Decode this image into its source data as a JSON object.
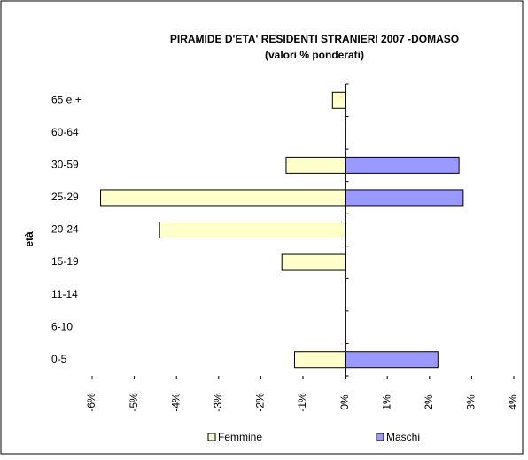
{
  "chart_data": {
    "type": "hbar",
    "title": "PIRAMIDE D'ETA' RESIDENTI STRANIERI 2007 -DOMASO",
    "subtitle": "(valori % ponderati)",
    "y_label": "età",
    "categories": [
      "0-5",
      "6-10",
      "11-14",
      "15-19",
      "20-24",
      "25-29",
      "30-59",
      "60-64",
      "65 e +"
    ],
    "series": [
      {
        "name": "Femmine",
        "color": "#ffffcc",
        "values": [
          -1.2,
          0,
          0,
          -1.5,
          -4.4,
          -5.8,
          -1.4,
          0,
          -0.3
        ]
      },
      {
        "name": "Maschi",
        "color": "#9999ff",
        "values": [
          2.2,
          0,
          0,
          0,
          0,
          2.8,
          2.7,
          0,
          0
        ]
      }
    ],
    "xlim": [
      -6,
      4
    ],
    "xticks": [
      {
        "value": -6,
        "label": "-6%"
      },
      {
        "value": -5,
        "label": "-5%"
      },
      {
        "value": -4,
        "label": "-4%"
      },
      {
        "value": -3,
        "label": "-3%"
      },
      {
        "value": -2,
        "label": "-2%"
      },
      {
        "value": -1,
        "label": "-1%"
      },
      {
        "value": 0,
        "label": "0%"
      },
      {
        "value": 1,
        "label": "1%"
      },
      {
        "value": 2,
        "label": "2%"
      },
      {
        "value": 3,
        "label": "3%"
      },
      {
        "value": 4,
        "label": "4%"
      }
    ],
    "grid": false,
    "legend": "bottom"
  }
}
